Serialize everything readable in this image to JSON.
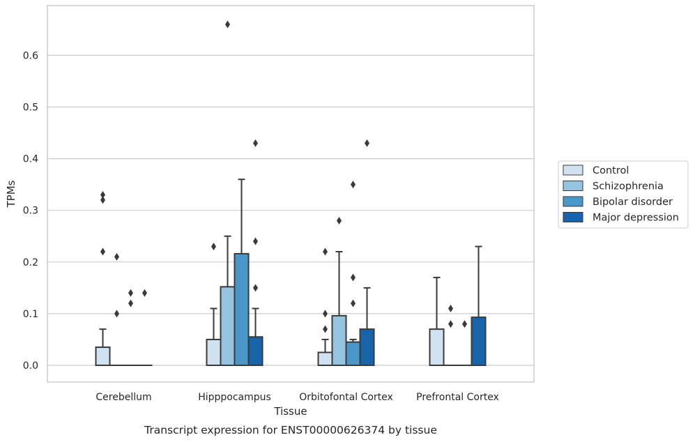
{
  "chart_data": {
    "type": "box",
    "title": "",
    "caption": "Transcript expression for ENST00000626374 by tissue",
    "xlabel": "Tissue",
    "ylabel": "TPMs",
    "ylim": [
      -0.032,
      0.695
    ],
    "yticks": [
      0.0,
      0.1,
      0.2,
      0.3,
      0.4,
      0.5,
      0.6
    ],
    "ytick_labels": [
      "0.0",
      "0.1",
      "0.2",
      "0.3",
      "0.4",
      "0.5",
      "0.6"
    ],
    "grid": true,
    "legend_position": "right",
    "categories": [
      "Cerebellum",
      "Hipppocampus",
      "Orbitofontal Cortex",
      "Prefrontal Cortex"
    ],
    "series": [
      {
        "name": "Control",
        "color": "#d0e1f2",
        "boxes": [
          {
            "q1": 0.0,
            "median": 0.0,
            "q3": 0.035,
            "whisker_low": 0.0,
            "whisker_high": 0.07,
            "outliers": [
              0.22,
              0.32,
              0.33
            ]
          },
          {
            "q1": 0.0,
            "median": 0.0,
            "q3": 0.05,
            "whisker_low": 0.0,
            "whisker_high": 0.11,
            "outliers": [
              0.23
            ]
          },
          {
            "q1": 0.0,
            "median": 0.0,
            "q3": 0.025,
            "whisker_low": 0.0,
            "whisker_high": 0.05,
            "outliers": [
              0.07,
              0.1,
              0.22
            ]
          },
          {
            "q1": 0.0,
            "median": 0.0,
            "q3": 0.07,
            "whisker_low": 0.0,
            "whisker_high": 0.17,
            "outliers": []
          }
        ]
      },
      {
        "name": "Schizophrenia",
        "color": "#94c4df",
        "boxes": [
          {
            "q1": 0.0,
            "median": 0.0,
            "q3": 0.0,
            "whisker_low": 0.0,
            "whisker_high": 0.0,
            "outliers": [
              0.1,
              0.21
            ]
          },
          {
            "q1": 0.0,
            "median": 0.0,
            "q3": 0.152,
            "whisker_low": 0.0,
            "whisker_high": 0.25,
            "outliers": [
              0.66
            ]
          },
          {
            "q1": 0.0,
            "median": 0.0,
            "q3": 0.096,
            "whisker_low": 0.0,
            "whisker_high": 0.22,
            "outliers": [
              0.28
            ]
          },
          {
            "q1": 0.0,
            "median": 0.0,
            "q3": 0.0,
            "whisker_low": 0.0,
            "whisker_high": 0.0,
            "outliers": [
              0.08,
              0.11
            ]
          }
        ]
      },
      {
        "name": "Bipolar disorder",
        "color": "#4a98c9",
        "boxes": [
          {
            "q1": 0.0,
            "median": 0.0,
            "q3": 0.0,
            "whisker_low": 0.0,
            "whisker_high": 0.0,
            "outliers": [
              0.12,
              0.14
            ]
          },
          {
            "q1": 0.0,
            "median": 0.0,
            "q3": 0.216,
            "whisker_low": 0.0,
            "whisker_high": 0.36,
            "outliers": []
          },
          {
            "q1": 0.0,
            "median": 0.0,
            "q3": 0.045,
            "whisker_low": 0.0,
            "whisker_high": 0.05,
            "outliers": [
              0.12,
              0.17,
              0.35
            ]
          },
          {
            "q1": 0.0,
            "median": 0.0,
            "q3": 0.0,
            "whisker_low": 0.0,
            "whisker_high": 0.0,
            "outliers": [
              0.08
            ]
          }
        ]
      },
      {
        "name": "Major depression",
        "color": "#1764ab",
        "boxes": [
          {
            "q1": 0.0,
            "median": 0.0,
            "q3": 0.0,
            "whisker_low": 0.0,
            "whisker_high": 0.0,
            "outliers": [
              0.14
            ]
          },
          {
            "q1": 0.0,
            "median": 0.0,
            "q3": 0.055,
            "whisker_low": 0.0,
            "whisker_high": 0.11,
            "outliers": [
              0.15,
              0.24,
              0.43
            ]
          },
          {
            "q1": 0.0,
            "median": 0.0,
            "q3": 0.07,
            "whisker_low": 0.0,
            "whisker_high": 0.15,
            "outliers": [
              0.43
            ]
          },
          {
            "q1": 0.0,
            "median": 0.0,
            "q3": 0.093,
            "whisker_low": 0.0,
            "whisker_high": 0.23,
            "outliers": []
          }
        ]
      }
    ]
  }
}
